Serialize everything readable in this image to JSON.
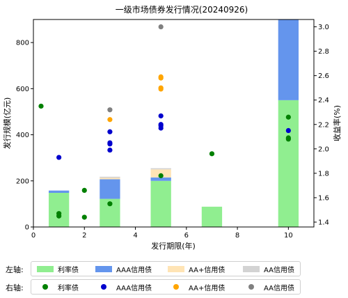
{
  "chart_data": {
    "type": "bar+scatter",
    "title": "一级市场债券发行情况(20240926)",
    "xlabel": "发行期限(年)",
    "ylabel_left": "发行规模(亿元)",
    "ylabel_right": "收益率(%)",
    "xlim": [
      0,
      11
    ],
    "ylim_left": [
      0,
      900
    ],
    "ylim_right": [
      1.36,
      3.06
    ],
    "x_ticks": [
      0,
      2,
      4,
      6,
      8,
      10
    ],
    "y_left_ticks": [
      0,
      200,
      400,
      600,
      800
    ],
    "y_right_ticks": [
      1.4,
      1.6,
      1.8,
      2.0,
      2.2,
      2.4,
      2.6,
      2.8,
      3.0
    ],
    "y_right_tick_labels": [
      "1.4",
      "1.6",
      "1.8",
      "2.0",
      "2.2",
      "2.4",
      "2.6",
      "2.8",
      "3.0"
    ],
    "bar_x": [
      1,
      3,
      5,
      7,
      10
    ],
    "bar_width": 0.8,
    "bar_series": [
      {
        "name": "利率债",
        "color": "#90EE90",
        "values": [
          148,
          122,
          200,
          88,
          550
        ]
      },
      {
        "name": "AAA信用债",
        "color": "#6495ED",
        "values": [
          10,
          85,
          15,
          0,
          350
        ]
      },
      {
        "name": "AA+信用债",
        "color": "#FFE4B5",
        "values": [
          0,
          6,
          35,
          0,
          0
        ]
      },
      {
        "name": "AA信用债",
        "color": "#D3D3D3",
        "values": [
          0,
          5,
          5,
          0,
          0
        ]
      }
    ],
    "scatter_series": [
      {
        "name": "利率债",
        "color": "#008000",
        "points": [
          [
            0.3,
            2.35
          ],
          [
            1,
            1.47
          ],
          [
            1,
            1.45
          ],
          [
            2,
            1.66
          ],
          [
            2,
            1.44
          ],
          [
            3,
            1.55
          ],
          [
            5,
            1.78
          ],
          [
            7,
            1.96
          ],
          [
            10,
            2.26
          ],
          [
            10,
            2.09
          ],
          [
            10,
            2.08
          ]
        ]
      },
      {
        "name": "AAA信用债",
        "color": "#0000CD",
        "points": [
          [
            1,
            1.93
          ],
          [
            3,
            2.14
          ],
          [
            3,
            2.05
          ],
          [
            3,
            2.04
          ],
          [
            3,
            1.99
          ],
          [
            5,
            2.27
          ],
          [
            5,
            2.2
          ],
          [
            5,
            2.19
          ],
          [
            5,
            2.17
          ],
          [
            10,
            2.15
          ]
        ]
      },
      {
        "name": "AA+信用债",
        "color": "#FFA500",
        "points": [
          [
            3,
            2.24
          ],
          [
            5,
            2.59
          ],
          [
            5,
            2.58
          ],
          [
            5,
            2.5
          ],
          [
            5,
            2.49
          ]
        ]
      },
      {
        "name": "AA信用债",
        "color": "#808080",
        "points": [
          [
            3,
            2.32
          ],
          [
            5,
            3.0
          ]
        ]
      }
    ]
  },
  "legend": {
    "left_label": "左轴:",
    "right_label": "右轴:"
  }
}
